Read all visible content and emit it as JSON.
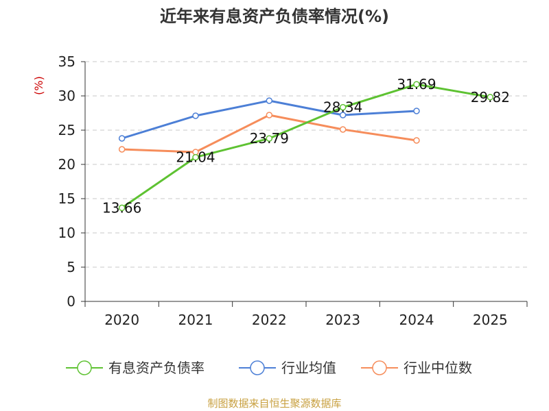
{
  "chart_data": {
    "type": "line",
    "title": "近年来有息资产负债率情况(%)",
    "ylabel": "(%)",
    "xlabel": "",
    "categories": [
      "2020",
      "2021",
      "2022",
      "2023",
      "2024",
      "2025"
    ],
    "ylim": [
      0,
      35
    ],
    "yticks": [
      0,
      5,
      10,
      15,
      20,
      25,
      30,
      35
    ],
    "grid": true,
    "legend_position": "bottom",
    "series": [
      {
        "name": "有息资产负债率",
        "color": "#5ec232",
        "values": [
          13.66,
          21.04,
          23.79,
          28.34,
          31.69,
          29.82
        ],
        "labels": [
          "13.66",
          "21.04",
          "23.79",
          "28.34",
          "31.69",
          "29.82"
        ]
      },
      {
        "name": "行业均值",
        "color": "#4c7fd6",
        "values": [
          23.8,
          27.1,
          29.3,
          27.2,
          27.8,
          null
        ]
      },
      {
        "name": "行业中位数",
        "color": "#f68d5b",
        "values": [
          22.2,
          21.8,
          27.2,
          25.1,
          23.5,
          null
        ]
      }
    ],
    "source": "制图数据来自恒生聚源数据库"
  }
}
